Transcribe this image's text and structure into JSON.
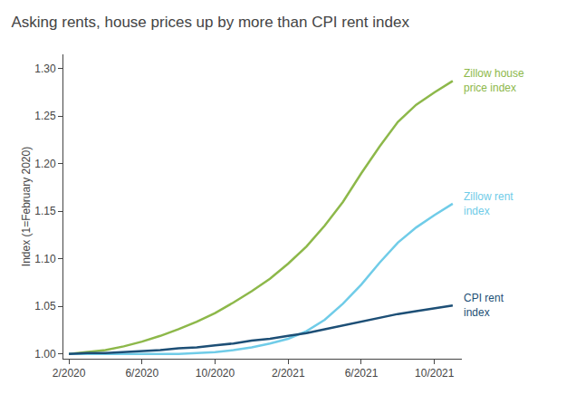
{
  "chart_data": {
    "type": "line",
    "title": "Asking rents, house prices up by more than CPI rent index",
    "y_label": "Index (1=February 2020)",
    "x": [
      0,
      1,
      2,
      3,
      4,
      5,
      6,
      7,
      8,
      9,
      10,
      11,
      12,
      13,
      14,
      15,
      16,
      17,
      18,
      19,
      20,
      21
    ],
    "xlim": [
      -0.3,
      21.5
    ],
    "xticks": [
      {
        "value": 0,
        "label": "2/2020"
      },
      {
        "value": 4,
        "label": "6/2020"
      },
      {
        "value": 8,
        "label": "10/2020"
      },
      {
        "value": 12,
        "label": "2/2021"
      },
      {
        "value": 16,
        "label": "6/2021"
      },
      {
        "value": 20,
        "label": "10/2021"
      }
    ],
    "ylim": [
      0.995,
      1.315
    ],
    "yticks": [
      {
        "value": 1.0,
        "label": "1.00"
      },
      1.05,
      {
        "value": 1.1,
        "label": "1.10"
      },
      1.15,
      {
        "value": 1.2,
        "label": "1.20"
      },
      1.25,
      {
        "value": 1.3,
        "label": "1.30"
      }
    ],
    "grid": false,
    "series": [
      {
        "name": "Zillow house\nprice index",
        "color": "#8db84a",
        "values": [
          1.0,
          1.002,
          1.004,
          1.008,
          1.013,
          1.019,
          1.026,
          1.034,
          1.043,
          1.054,
          1.066,
          1.079,
          1.095,
          1.113,
          1.135,
          1.16,
          1.19,
          1.218,
          1.244,
          1.262,
          1.275,
          1.287
        ]
      },
      {
        "name": "Zillow rent\nindex",
        "color": "#70cce8",
        "values": [
          1.0,
          1.0,
          1.0,
          1.0,
          1.0,
          1.0,
          1.0,
          1.001,
          1.002,
          1.004,
          1.007,
          1.011,
          1.016,
          1.024,
          1.036,
          1.053,
          1.073,
          1.096,
          1.117,
          1.133,
          1.146,
          1.158
        ]
      },
      {
        "name": "CPI rent\nindex",
        "color": "#1d4f76",
        "values": [
          1.0,
          1.001,
          1.001,
          1.002,
          1.003,
          1.004,
          1.006,
          1.007,
          1.009,
          1.011,
          1.014,
          1.016,
          1.019,
          1.022,
          1.026,
          1.03,
          1.034,
          1.038,
          1.042,
          1.045,
          1.048,
          1.051
        ]
      }
    ]
  }
}
